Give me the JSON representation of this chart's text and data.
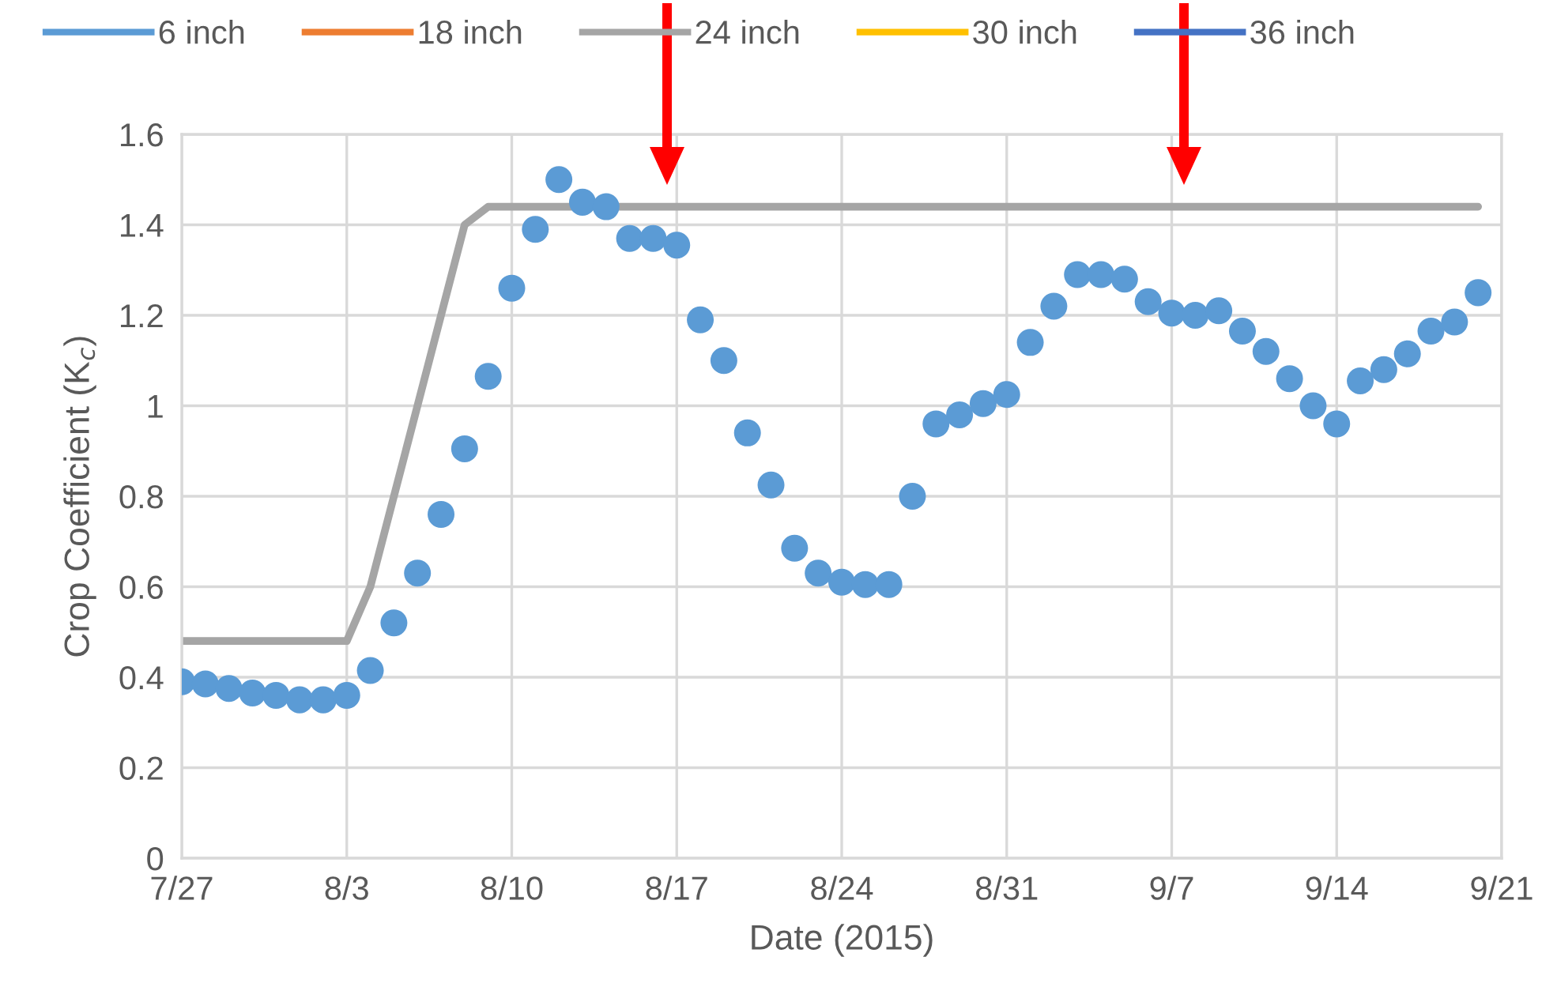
{
  "chart_data": {
    "type": "scatter",
    "xlabel": "Date (2015)",
    "ylabel": "Crop Coefficient (K$_{c}$)",
    "xlim": [
      "2015-07-27",
      "2015-09-21"
    ],
    "xticks": [
      {
        "value": "2015-07-27",
        "label": "7/27"
      },
      {
        "value": "2015-08-03",
        "label": "8/3"
      },
      {
        "value": "2015-08-10",
        "label": "8/10"
      },
      {
        "value": "2015-08-17",
        "label": "8/17"
      },
      {
        "value": "2015-08-24",
        "label": "8/24"
      },
      {
        "value": "2015-08-31",
        "label": "8/31"
      },
      {
        "value": "2015-09-07",
        "label": "9/7"
      },
      {
        "value": "2015-09-14",
        "label": "9/14"
      },
      {
        "value": "2015-09-21",
        "label": "9/21"
      }
    ],
    "ylim": [
      0,
      1.6
    ],
    "yticks": [
      0,
      0.2,
      0.4,
      0.6,
      0.8,
      1,
      1.2,
      1.4,
      1.6
    ],
    "grid": true,
    "legend": "top",
    "x": [
      "2015-07-27",
      "2015-07-28",
      "2015-07-29",
      "2015-07-30",
      "2015-07-31",
      "2015-08-01",
      "2015-08-02",
      "2015-08-03",
      "2015-08-04",
      "2015-08-05",
      "2015-08-06",
      "2015-08-07",
      "2015-08-08",
      "2015-08-09",
      "2015-08-10",
      "2015-08-11",
      "2015-08-12",
      "2015-08-13",
      "2015-08-14",
      "2015-08-15",
      "2015-08-16",
      "2015-08-17",
      "2015-08-18",
      "2015-08-19",
      "2015-08-20",
      "2015-08-21",
      "2015-08-22",
      "2015-08-23",
      "2015-08-24",
      "2015-08-25",
      "2015-08-26",
      "2015-08-27",
      "2015-08-28",
      "2015-08-29",
      "2015-08-30",
      "2015-08-31",
      "2015-09-01",
      "2015-09-02",
      "2015-09-03",
      "2015-09-04",
      "2015-09-05",
      "2015-09-06",
      "2015-09-07",
      "2015-09-08",
      "2015-09-09",
      "2015-09-10",
      "2015-09-11",
      "2015-09-12",
      "2015-09-13",
      "2015-09-14",
      "2015-09-15",
      "2015-09-16",
      "2015-09-17",
      "2015-09-18",
      "2015-09-19",
      "2015-09-20"
    ],
    "series": [
      {
        "name": "6 inch",
        "marker": "circle",
        "color": "#5b9bd5",
        "values": [
          0.39,
          0.385,
          0.375,
          0.365,
          0.36,
          0.35,
          0.35,
          0.36,
          0.415,
          0.52,
          0.63,
          0.76,
          0.905,
          1.065,
          1.26,
          1.39,
          1.5,
          1.45,
          1.44,
          1.37,
          1.37,
          1.355,
          1.19,
          1.1,
          0.94,
          0.825,
          0.685,
          0.63,
          0.61,
          0.605,
          0.605,
          0.8,
          0.96,
          0.98,
          1.005,
          1.025,
          1.14,
          1.22,
          1.29,
          1.29,
          1.28,
          1.23,
          1.205,
          1.2,
          1.21,
          1.165,
          1.12,
          1.06,
          1.0,
          0.96,
          1.055,
          1.08,
          1.115,
          1.165,
          1.185,
          1.25
        ]
      },
      {
        "name": "18 inch",
        "type": "line",
        "color": "#ed7d31",
        "values": [
          null,
          null,
          null,
          null,
          null,
          null,
          null,
          null,
          null,
          null,
          null,
          null,
          null,
          null,
          null,
          null,
          null,
          null,
          null,
          null,
          null,
          null,
          null,
          null,
          null,
          null,
          null,
          null,
          null,
          null,
          null,
          null,
          null,
          null,
          null,
          null,
          null,
          null,
          null,
          null,
          null,
          null,
          null,
          null,
          null,
          null,
          null,
          null,
          null,
          null,
          null,
          null,
          null,
          null,
          null,
          null
        ]
      },
      {
        "name": "24 inch",
        "type": "line",
        "marker": "none",
        "color": "#a5a5a5",
        "x": [
          "2015-07-27",
          "2015-08-03",
          "2015-08-04",
          "2015-08-08",
          "2015-08-09",
          "2015-09-20"
        ],
        "values": [
          0.48,
          0.48,
          0.6,
          1.4,
          1.44,
          1.44
        ]
      },
      {
        "name": "30 inch",
        "type": "line",
        "color": "#ffc000",
        "values": [
          null,
          null,
          null,
          null,
          null,
          null,
          null,
          null,
          null,
          null,
          null,
          null,
          null,
          null,
          null,
          null,
          null,
          null,
          null,
          null,
          null,
          null,
          null,
          null,
          null,
          null,
          null,
          null,
          null,
          null,
          null,
          null,
          null,
          null,
          null,
          null,
          null,
          null,
          null,
          null,
          null,
          null,
          null,
          null,
          null,
          null,
          null,
          null,
          null,
          null,
          null,
          null,
          null,
          null,
          null,
          null
        ]
      },
      {
        "name": "36 inch",
        "type": "line",
        "color": "#4472c4",
        "values": [
          null,
          null,
          null,
          null,
          null,
          null,
          null,
          null,
          null,
          null,
          null,
          null,
          null,
          null,
          null,
          null,
          null,
          null,
          null,
          null,
          null,
          null,
          null,
          null,
          null,
          null,
          null,
          null,
          null,
          null,
          null,
          null,
          null,
          null,
          null,
          null,
          null,
          null,
          null,
          null,
          null,
          null,
          null,
          null,
          null,
          null,
          null,
          null,
          null,
          null,
          null,
          null,
          null,
          null,
          null,
          null
        ]
      }
    ]
  }
}
